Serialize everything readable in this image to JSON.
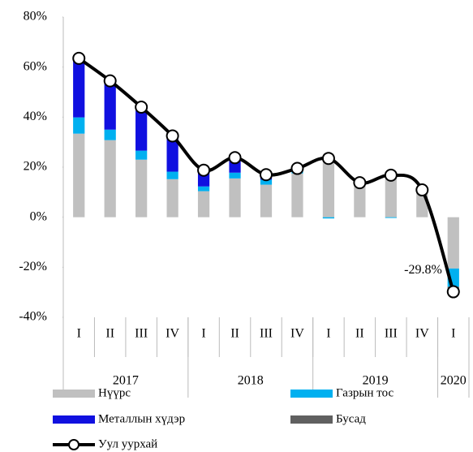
{
  "chart_data": {
    "type": "bar",
    "stacked": true,
    "categories": [
      "I",
      "II",
      "III",
      "IV",
      "I",
      "II",
      "III",
      "IV",
      "I",
      "II",
      "III",
      "IV",
      "I"
    ],
    "x_groups": [
      {
        "name": "2017",
        "count": 4
      },
      {
        "name": "2018",
        "count": 4
      },
      {
        "name": "2019",
        "count": 4
      },
      {
        "name": "2020",
        "count": 1
      }
    ],
    "ylim": [
      -40,
      80
    ],
    "yticks": [
      {
        "value": -40,
        "label": "-40%"
      },
      {
        "value": -20,
        "label": "-20%"
      },
      {
        "value": 0,
        "label": "0%"
      },
      {
        "value": 20,
        "label": "20%"
      },
      {
        "value": 40,
        "label": "40%"
      },
      {
        "value": 60,
        "label": "60%"
      },
      {
        "value": 80,
        "label": "80%"
      }
    ],
    "series": [
      {
        "name": "Нүүрс",
        "color": "#c0c0c0",
        "values": [
          33.4,
          30.8,
          23,
          15.2,
          10.4,
          15.5,
          13,
          17.5,
          22.7,
          13,
          17,
          11,
          -20.5
        ]
      },
      {
        "name": "Газрын тос",
        "color": "#00b0f0",
        "values": [
          6.5,
          4.2,
          3.6,
          3,
          1.9,
          2.3,
          2,
          1,
          -0.5,
          0.5,
          -0.3,
          0,
          -7.3
        ]
      },
      {
        "name": "Металлын хүдэр",
        "color": "#1010e0",
        "values": [
          23.5,
          19.5,
          17.4,
          14.2,
          6.7,
          5.2,
          1.2,
          1.3,
          0.8,
          0.3,
          0,
          0,
          0
        ]
      },
      {
        "name": "Бусад",
        "color": "#606060",
        "values": [
          0,
          0,
          0,
          0,
          0,
          0,
          0,
          0,
          0,
          0,
          0,
          0,
          -2
        ]
      },
      {
        "name": "Уул уурхай",
        "type": "line",
        "color": "#000000",
        "values": [
          63.5,
          54.5,
          44,
          32.5,
          18.8,
          23.8,
          17,
          19.5,
          23.5,
          13.8,
          16.8,
          10.9,
          -29.8
        ],
        "value_labels": [
          null,
          null,
          null,
          null,
          null,
          null,
          null,
          null,
          null,
          null,
          null,
          null,
          "-29.8%"
        ]
      }
    ]
  }
}
